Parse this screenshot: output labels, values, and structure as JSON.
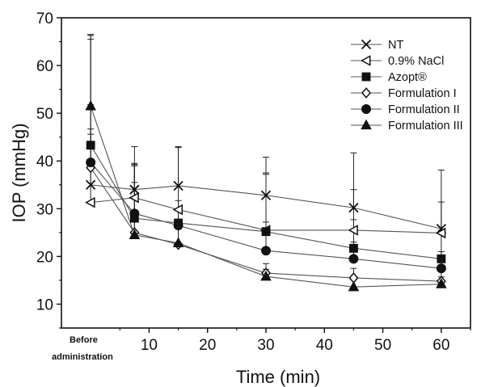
{
  "chart_data": {
    "type": "line",
    "xlabel": "Time (min)",
    "ylabel": "IOP (mmHg)",
    "xlim": [
      -5,
      65
    ],
    "ylim": [
      5,
      70
    ],
    "xticks": [
      10,
      20,
      30,
      40,
      50,
      60
    ],
    "yticks": [
      10,
      20,
      30,
      40,
      50,
      60,
      70
    ],
    "x_first_label_line1": "Before",
    "x_first_label_line2": "administration",
    "legend_position": "top-right",
    "error_bars": "upper",
    "x": [
      0,
      7.5,
      15,
      30,
      45,
      60
    ],
    "series": [
      {
        "name": "NT",
        "marker": "x",
        "values": [
          35.0,
          34.0,
          34.8,
          32.8,
          30.2,
          25.8
        ],
        "errors": [
          31.5,
          9.0,
          8.2,
          8.0,
          11.5,
          12.3
        ]
      },
      {
        "name": "0.9% NaCl",
        "marker": "triangle-left-open",
        "values": [
          31.3,
          32.3,
          29.8,
          25.5,
          25.5,
          24.9
        ],
        "errors": [
          35.0,
          7.0,
          13.0,
          12.0,
          8.5,
          6.5
        ]
      },
      {
        "name": "Azopt®",
        "marker": "square",
        "values": [
          43.3,
          28.0,
          27.0,
          25.2,
          21.7,
          19.5
        ],
        "errors": [
          8.5,
          11.5,
          4.7,
          12.0,
          6.0,
          6.0
        ]
      },
      {
        "name": "Formulation I",
        "marker": "diamond-open",
        "values": [
          38.6,
          25.0,
          22.5,
          16.5,
          15.5,
          14.8
        ],
        "errors": [
          7.0,
          10.5,
          5.0,
          2.0,
          2.0,
          2.0
        ]
      },
      {
        "name": "Formulation II",
        "marker": "circle",
        "values": [
          39.7,
          29.0,
          26.5,
          21.2,
          19.5,
          17.5
        ],
        "errors": [
          7.0,
          10.0,
          3.5,
          6.0,
          3.5,
          3.5
        ]
      },
      {
        "name": "Formulation III",
        "marker": "triangle-up",
        "values": [
          51.5,
          24.5,
          22.8,
          15.8,
          13.6,
          14.2
        ],
        "errors": [
          14.0,
          14.5,
          3.0,
          1.5,
          1.5,
          1.5
        ]
      }
    ]
  }
}
